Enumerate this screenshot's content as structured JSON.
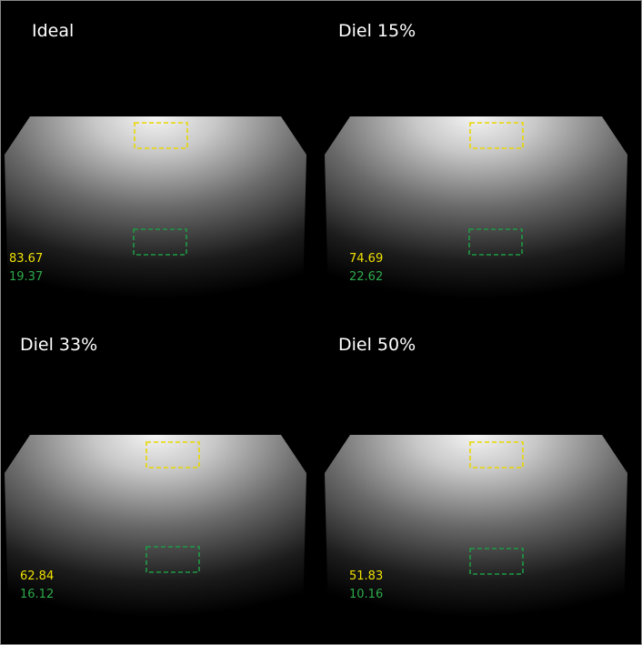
{
  "panels": [
    {
      "title": "Ideal",
      "yellow_value": "83.67",
      "green_value": "19.37"
    },
    {
      "title": "Diel 15%",
      "yellow_value": "74.69",
      "green_value": "22.62"
    },
    {
      "title": "Diel 33%",
      "yellow_value": "62.84",
      "green_value": "16.12"
    },
    {
      "title": "Diel 50%",
      "yellow_value": "51.83",
      "green_value": "10.16"
    }
  ]
}
